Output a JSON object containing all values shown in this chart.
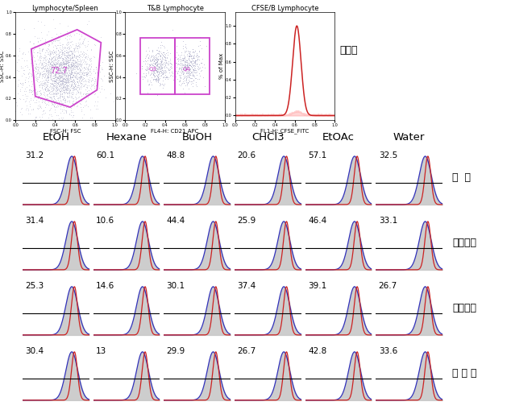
{
  "top_panels": [
    {
      "title": "Lymphocyte/Spleen",
      "xlabel": "FSC-H: FSC",
      "ylabel": "SSC-H: SSC",
      "label": "72.7"
    },
    {
      "title": "T&B Lymphocyte",
      "xlabel": "FL4-H: CD21 APC",
      "ylabel": "SSC-H: SSC"
    },
    {
      "title": "CFSE/B Lymphocyte",
      "xlabel": "FL1-H: CFSE_FITC",
      "ylabel": "% of Max",
      "label": "대조구"
    }
  ],
  "col_headers": [
    "EtOH",
    "Hexane",
    "BuOH",
    "CHCl3",
    "EtOAc",
    "Water"
  ],
  "row_labels": [
    "참  취",
    "숙부쟁이",
    "산초나무",
    "방 아 폴"
  ],
  "values": [
    [
      31.2,
      60.1,
      48.8,
      20.6,
      57.1,
      32.5
    ],
    [
      31.4,
      10.6,
      44.4,
      25.9,
      46.4,
      33.1
    ],
    [
      25.3,
      14.6,
      30.1,
      37.4,
      39.1,
      26.7
    ],
    [
      30.4,
      13,
      29.9,
      26.7,
      42.8,
      33.6
    ]
  ],
  "blue": "#3333bb",
  "red": "#cc2222",
  "gray": "#c8c8c8",
  "magenta": "#cc44cc",
  "black": "#000000",
  "white": "#ffffff"
}
